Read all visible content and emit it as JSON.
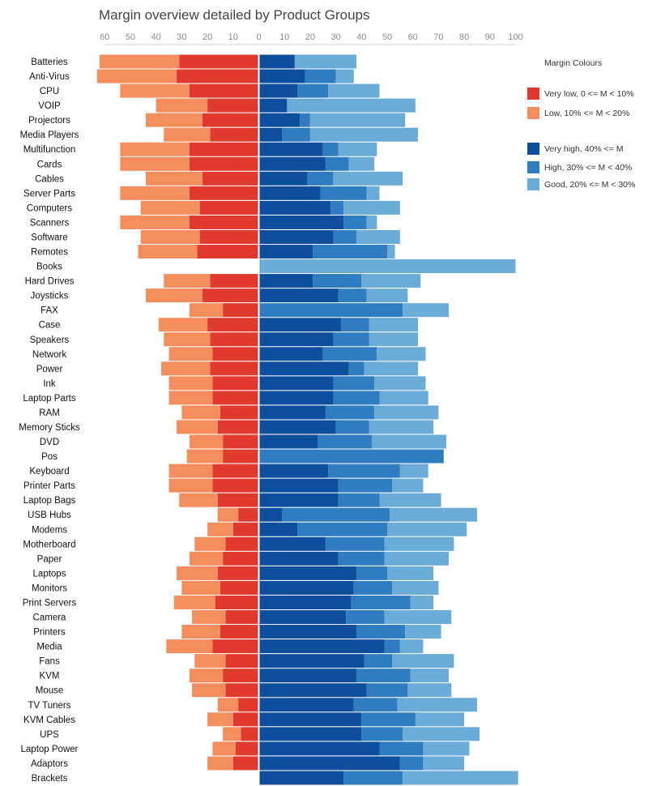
{
  "chart_data": {
    "type": "bar",
    "title": "Margin overview detailed by Product Groups",
    "xlabel": "",
    "ylabel": "",
    "xlim": [
      -60,
      100
    ],
    "x_ticks": [
      "60",
      "50",
      "40",
      "30",
      "20",
      "10",
      "0",
      "10",
      "20",
      "30",
      "40",
      "50",
      "60",
      "70",
      "80",
      "90",
      "100"
    ],
    "x_tick_values": [
      -60,
      -50,
      -40,
      -30,
      -20,
      -10,
      0,
      10,
      20,
      30,
      40,
      50,
      60,
      70,
      80,
      90,
      100
    ],
    "grid": false,
    "legend_position": "right",
    "legend_title": "Margin Colours",
    "categories": [
      "Batteries",
      "Anti-Virus",
      "CPU",
      "VOIP",
      "Projectors",
      "Media Players",
      "Multifunction",
      "Cards",
      "Cables",
      "Server Parts",
      "Computers",
      "Scanners",
      "Software",
      "Remotes",
      "Books",
      "Hard Drives",
      "Joysticks",
      "FAX",
      "Case",
      "Speakers",
      "Network",
      "Power",
      "Ink",
      "Laptop Parts",
      "RAM",
      "Memory Sticks",
      "DVD",
      "Pos",
      "Keyboard",
      "Printer Parts",
      "Laptop Bags",
      "USB Hubs",
      "Modems",
      "Motherboard",
      "Paper",
      "Laptops",
      "Monitors",
      "Print Servers",
      "Camera",
      "Printers",
      "Media",
      "Fans",
      "KVM",
      "Mouse",
      "TV Tuners",
      "KVM Cables",
      "UPS",
      "Laptop Power",
      "Adaptors",
      "Brackets"
    ],
    "series": [
      {
        "name": "Very low, 0 <=  M  < 10%",
        "color": "#e03a2f",
        "side": "negative",
        "values": [
          31,
          32,
          27,
          20,
          22,
          19,
          27,
          27,
          22,
          27,
          23,
          27,
          23,
          24,
          0,
          19,
          22,
          14,
          20,
          19,
          18,
          19,
          18,
          18,
          15,
          16,
          14,
          14,
          18,
          18,
          16,
          8,
          10,
          13,
          14,
          16,
          15,
          17,
          13,
          15,
          18,
          13,
          14,
          13,
          8,
          10,
          7,
          9,
          10,
          0
        ]
      },
      {
        "name": "Low, 10% <= M < 20%",
        "color": "#f68d5c",
        "side": "negative",
        "values": [
          31,
          31,
          27,
          20,
          22,
          18,
          27,
          27,
          22,
          27,
          23,
          27,
          23,
          23,
          0,
          18,
          22,
          13,
          19,
          18,
          17,
          19,
          17,
          17,
          15,
          16,
          13,
          14,
          17,
          17,
          15,
          8,
          10,
          12,
          13,
          16,
          15,
          16,
          13,
          15,
          18,
          12,
          13,
          13,
          8,
          10,
          7,
          9,
          10,
          0
        ]
      },
      {
        "name": "Very high, 40% <= M",
        "color": "#0d4e9d",
        "side": "positive",
        "values": [
          14,
          18,
          15,
          11,
          16,
          9,
          25,
          26,
          19,
          24,
          28,
          33,
          29,
          21,
          0,
          21,
          31,
          0,
          32,
          29,
          25,
          35,
          29,
          29,
          26,
          30,
          23,
          0,
          27,
          31,
          31,
          9,
          15,
          26,
          31,
          38,
          37,
          36,
          34,
          38,
          49,
          41,
          38,
          42,
          37,
          40,
          40,
          47,
          55,
          33
        ]
      },
      {
        "name": "High, 30% <= M < 40%",
        "color": "#2f7cc1",
        "side": "positive",
        "values": [
          0,
          12,
          12,
          0,
          4,
          11,
          6,
          9,
          10,
          18,
          5,
          9,
          9,
          29,
          0,
          19,
          11,
          56,
          11,
          14,
          21,
          6,
          16,
          18,
          19,
          13,
          21,
          72,
          28,
          21,
          16,
          42,
          35,
          23,
          18,
          12,
          15,
          23,
          15,
          19,
          6,
          11,
          21,
          16,
          17,
          21,
          16,
          17,
          9,
          23
        ]
      },
      {
        "name": "Good, 20% <= M < 30%",
        "color": "#6aacd7",
        "side": "positive",
        "values": [
          24,
          7,
          20,
          50,
          37,
          42,
          15,
          10,
          27,
          5,
          22,
          4,
          17,
          3,
          100,
          23,
          16,
          18,
          19,
          19,
          19,
          21,
          20,
          19,
          25,
          25,
          29,
          0,
          11,
          12,
          24,
          34,
          31,
          27,
          25,
          18,
          18,
          9,
          26,
          14,
          9,
          24,
          15,
          17,
          31,
          19,
          30,
          18,
          16,
          45
        ]
      }
    ]
  }
}
